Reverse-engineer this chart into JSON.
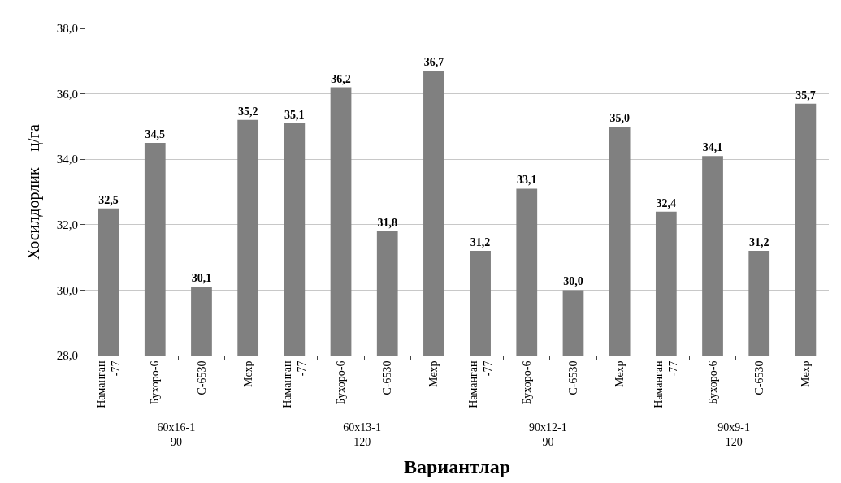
{
  "chart_data": {
    "type": "bar",
    "categories": [
      "Наманган\n-77",
      "Бухоро-6",
      "С-6530",
      "Мехр",
      "Наманган\n-77",
      "Бухоро-6",
      "С-6530",
      "Мехр",
      "Наманган\n-77",
      "Бухоро-6",
      "С-6530",
      "Мехр",
      "Наманган\n-77",
      "Бухоро-6",
      "С-6530",
      "Мехр"
    ],
    "values": [
      32.5,
      34.5,
      30.1,
      35.2,
      35.1,
      36.2,
      31.8,
      36.7,
      31.2,
      33.1,
      30.0,
      35.0,
      32.4,
      34.1,
      31.2,
      35.7
    ],
    "value_labels": [
      "32,5",
      "34,5",
      "30,1",
      "35,2",
      "35,1",
      "36,2",
      "31,8",
      "36,7",
      "31,2",
      "33,1",
      "30,0",
      "35,0",
      "32,4",
      "34,1",
      "31,2",
      "35,7"
    ],
    "color": "#808080",
    "ylabel": "Хосилдорлик    ц/га",
    "xlabel": "Вариантлар",
    "annotations": [
      "60x16-1\n90",
      "60x13-1\n120",
      "90x12-1\n90",
      "90x9-1\n120"
    ],
    "ylim": [
      28,
      38
    ],
    "yticks": [
      {
        "value": 28,
        "label": "28,0"
      },
      {
        "value": 30,
        "label": "30,0"
      },
      {
        "value": 32,
        "label": "32,0"
      },
      {
        "value": 34,
        "label": "34,0"
      },
      {
        "value": 36,
        "label": "36,0"
      },
      {
        "value": 38,
        "label": "38,0"
      }
    ],
    "grid": "y",
    "legend": false
  }
}
